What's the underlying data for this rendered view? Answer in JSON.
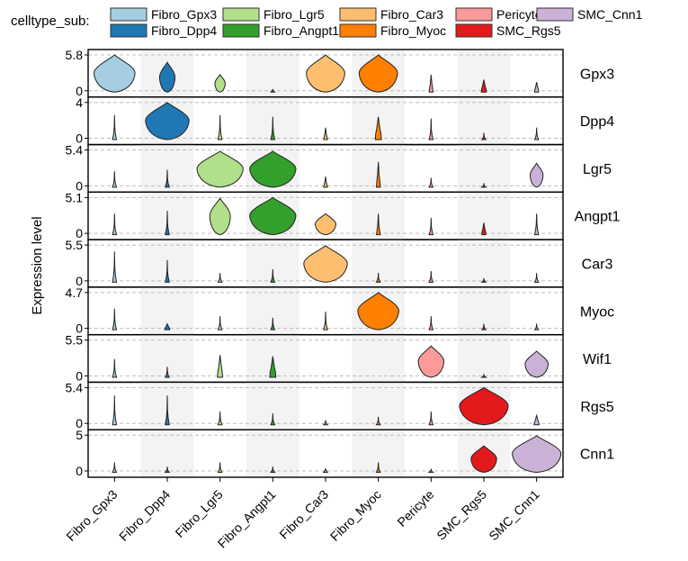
{
  "chart_data": {
    "type": "violin",
    "legend": {
      "title": "celltype_sub:",
      "placement": "top",
      "items": [
        {
          "name": "Fibro_Gpx3",
          "color": "#A6CEE3"
        },
        {
          "name": "Fibro_Dpp4",
          "color": "#1F78B4"
        },
        {
          "name": "Fibro_Lgr5",
          "color": "#B2DF8A"
        },
        {
          "name": "Fibro_Angpt1",
          "color": "#33A02C"
        },
        {
          "name": "Fibro_Car3",
          "color": "#FDBF6F"
        },
        {
          "name": "Fibro_Myoc",
          "color": "#FF7F00"
        },
        {
          "name": "Pericyte",
          "color": "#FB9A99"
        },
        {
          "name": "SMC_Rgs5",
          "color": "#E31A1C"
        },
        {
          "name": "SMC_Cnn1",
          "color": "#CAB2D6"
        }
      ]
    },
    "ylabel": "Expression level",
    "categories": [
      "Fibro_Gpx3",
      "Fibro_Dpp4",
      "Fibro_Lgr5",
      "Fibro_Angpt1",
      "Fibro_Car3",
      "Fibro_Myoc",
      "Pericyte",
      "SMC_Rgs5",
      "SMC_Cnn1"
    ],
    "genes": [
      {
        "name": "Gpx3",
        "ymax": 5.8,
        "ymax_label": "5.8",
        "ymin_label": "0",
        "peak": [
          5.8,
          4.6,
          2.6,
          0.2,
          5.8,
          5.8,
          2.6,
          1.8,
          1.4
        ],
        "width": [
          0.8,
          0.3,
          0.2,
          0.06,
          0.75,
          0.75,
          0.06,
          0.1,
          0.08
        ]
      },
      {
        "name": "Dpp4",
        "ymax": 4.0,
        "ymax_label": "4",
        "ymin_label": "0",
        "peak": [
          2.6,
          4.0,
          2.6,
          2.4,
          1.2,
          2.4,
          2.2,
          0.6,
          1.2
        ],
        "width": [
          0.02,
          0.85,
          0.02,
          0.02,
          0.05,
          0.12,
          0.02,
          0.02,
          0.02
        ]
      },
      {
        "name": "Lgr5",
        "ymax": 5.4,
        "ymax_label": "5.4",
        "ymin_label": "0",
        "peak": [
          2.2,
          2.4,
          5.2,
          5.2,
          1.4,
          3.6,
          1.2,
          0.4,
          3.4
        ],
        "width": [
          0.02,
          0.02,
          0.9,
          0.9,
          0.05,
          0.06,
          0.02,
          0.02,
          0.25
        ]
      },
      {
        "name": "Angpt1",
        "ymax": 5.1,
        "ymax_label": "5.1",
        "ymin_label": "0",
        "peak": [
          2.8,
          3.2,
          5.0,
          5.1,
          2.8,
          2.8,
          2.2,
          1.5,
          2.8
        ],
        "width": [
          0.02,
          0.02,
          0.4,
          0.9,
          0.4,
          0.04,
          0.02,
          0.08,
          0.03
        ]
      },
      {
        "name": "Car3",
        "ymax": 5.5,
        "ymax_label": "5.5",
        "ymin_label": "0",
        "peak": [
          4.5,
          3.2,
          1.2,
          1.8,
          5.4,
          1.2,
          1.5,
          0.4,
          1.2
        ],
        "width": [
          0.02,
          0.02,
          0.02,
          0.02,
          0.85,
          0.02,
          0.02,
          0.02,
          0.02
        ]
      },
      {
        "name": "Myoc",
        "ymax": 4.7,
        "ymax_label": "4.7",
        "ymin_label": "0",
        "peak": [
          2.6,
          0.6,
          1.6,
          1.4,
          2.2,
          4.7,
          1.6,
          0.6,
          0.6
        ],
        "width": [
          0.02,
          0.1,
          0.02,
          0.02,
          0.02,
          0.8,
          0.02,
          0.02,
          0.02
        ]
      },
      {
        "name": "Wif1",
        "ymax": 5.5,
        "ymax_label": "5.5",
        "ymin_label": "0",
        "peak": [
          2.6,
          1.4,
          3.2,
          3.0,
          0,
          0,
          4.6,
          0.3,
          3.8
        ],
        "width": [
          0.02,
          0.02,
          0.1,
          0.12,
          0,
          0,
          0.5,
          0.02,
          0.45
        ]
      },
      {
        "name": "Rgs5",
        "ymax": 5.4,
        "ymax_label": "5.4",
        "ymin_label": "0",
        "peak": [
          4.2,
          4.2,
          1.8,
          1.5,
          0.5,
          1.0,
          1.8,
          5.4,
          1.2
        ],
        "width": [
          0.02,
          0.02,
          0.02,
          0.02,
          0.02,
          0.02,
          0.02,
          0.95,
          0.1
        ]
      },
      {
        "name": "Cnn1",
        "ymax": 5.0,
        "ymax_label": "5",
        "ymin_label": "0",
        "peak": [
          1.2,
          0.6,
          1.2,
          0.6,
          0.3,
          1.2,
          0.3,
          3.5,
          4.9
        ],
        "width": [
          0.02,
          0.02,
          0.02,
          0.02,
          0.05,
          0.02,
          0.02,
          0.5,
          0.95
        ]
      }
    ]
  }
}
